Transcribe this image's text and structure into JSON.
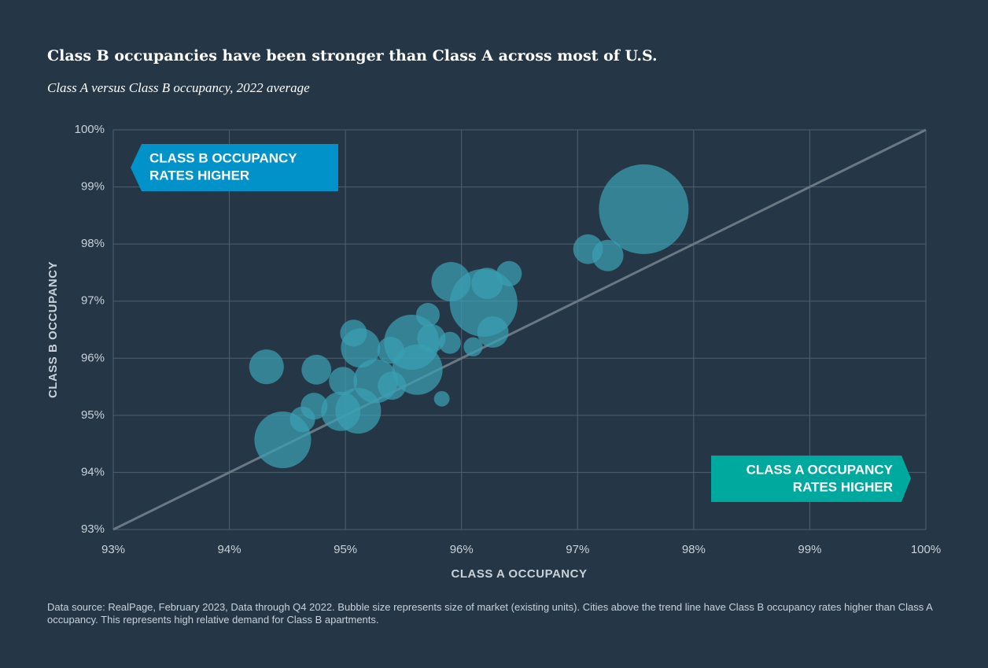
{
  "chart_data": {
    "type": "bubble",
    "title": "Class B occupancies have been stronger than Class A across most of U.S.",
    "subtitle": "Class A versus Class B occupancy, 2022 average",
    "x_label": "CLASS A OCCUPANCY",
    "y_label": "CLASS B OCCUPANCY",
    "annotations": [
      {
        "lines": [
          "CLASS B OCCUPANCY",
          "RATES HIGHER"
        ],
        "color": "#0092c8"
      },
      {
        "lines": [
          "CLASS A OCCUPANCY",
          "RATES HIGHER"
        ],
        "color": "#00a99d"
      }
    ],
    "footnote": "Data source: RealPage, February 2023, Data through Q4 2022. Bubble size represents size of market (existing units). Cities above the trend line have Class B occupancy rates higher than Class A occupancy. This represents high relative demand for Class B apartments.",
    "color": "#3a9fb3",
    "x": [
      97.57,
      97.09,
      97.26,
      96.41,
      95.91,
      96.22,
      96.19,
      96.27,
      95.71,
      95.07,
      95.13,
      95.9,
      96.1,
      95.74,
      95.57,
      95.39,
      94.32,
      94.75,
      94.98,
      95.26,
      95.62,
      95.4,
      95.83,
      94.73,
      94.63,
      94.96,
      95.11,
      94.46
    ],
    "values": [
      98.61,
      97.91,
      97.8,
      97.48,
      97.34,
      97.31,
      96.97,
      96.46,
      96.76,
      96.44,
      96.18,
      96.27,
      96.2,
      96.35,
      96.28,
      96.14,
      95.85,
      95.8,
      95.6,
      95.6,
      95.8,
      95.52,
      95.29,
      95.16,
      94.93,
      95.07,
      95.08,
      94.57
    ],
    "sizes": [
      400,
      44,
      49,
      32,
      77,
      49,
      228,
      49,
      28,
      36,
      77,
      24,
      18,
      40,
      151,
      36,
      60,
      44,
      40,
      97,
      126,
      40,
      12,
      36,
      32,
      77,
      104,
      160
    ],
    "xlim": [
      93,
      100
    ],
    "ylim": [
      93,
      100
    ],
    "xticks": [
      {
        "value": 93,
        "label": "93%"
      },
      {
        "value": 94,
        "label": "94%"
      },
      {
        "value": 95,
        "label": "95%"
      },
      {
        "value": 96,
        "label": "96%"
      },
      {
        "value": 97,
        "label": "97%"
      },
      {
        "value": 98,
        "label": "98%"
      },
      {
        "value": 99,
        "label": "99%"
      },
      {
        "value": 100,
        "label": "100%"
      }
    ],
    "yticks": [
      {
        "value": 93,
        "label": "93%"
      },
      {
        "value": 94,
        "label": "94%"
      },
      {
        "value": 95,
        "label": "95%"
      },
      {
        "value": 96,
        "label": "96%"
      },
      {
        "value": 97,
        "label": "97%"
      },
      {
        "value": 98,
        "label": "98%"
      },
      {
        "value": 99,
        "label": "99%"
      },
      {
        "value": 100,
        "label": "100%"
      }
    ],
    "grid": true
  }
}
